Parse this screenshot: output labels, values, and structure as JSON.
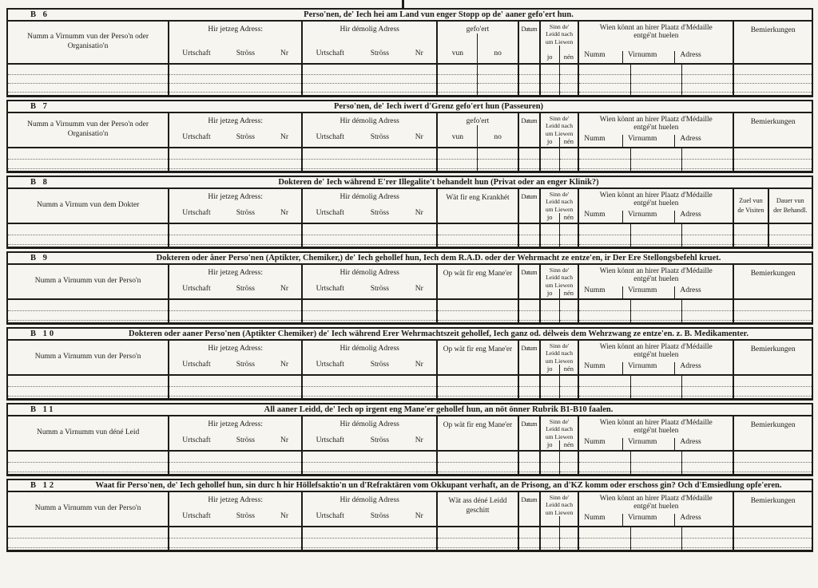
{
  "page": {
    "paper_color": "#f5f4ee",
    "ink_color": "#1d1c18"
  },
  "common": {
    "jetzeg": "Hir jetzeg Adress:",
    "demolig": "Hir démolig Adress",
    "urtschaft": "Urtschaft",
    "stross": "Ströss",
    "nr": "Nr",
    "datum": "Datum",
    "sinn": [
      "Sinn de'",
      "Leidd nach",
      "um Liewen"
    ],
    "jo": "jo",
    "nen": "nén",
    "wien": [
      "Wien könnt an hirer Plaatz d'Médaille",
      "entgé'nt huelen"
    ],
    "numm": "Numm",
    "virnumm": "Virnumm",
    "adress": "Adress",
    "bemierkungen": "Bemierkungen",
    "zuel": [
      "Zuel vun",
      "de Visiten"
    ],
    "dauer": [
      "Dauer vun",
      "der Behandl."
    ]
  },
  "sections": [
    {
      "label": "B 6",
      "title": "Perso'nen, de' Iech hei am Land vun enger Stopp op de' aaner gefo'ert hun.",
      "name_col": "Numm a Virnumm vun der Perso'n oder Organisatio'n",
      "mid": {
        "type": "split",
        "header": "gefo'ert",
        "left": "vun",
        "right": "no"
      },
      "sinn_labels": true,
      "tail": "bem",
      "rows": 3
    },
    {
      "label": "B 7",
      "title": "Perso'nen, de' Iech iwert d'Grenz gefo'ert hun (Passeuren)",
      "name_col": "Numm a Virnumm vun der Perso'n oder Organisatio'n",
      "mid": {
        "type": "split",
        "header": "gefo'ert",
        "left": "vun",
        "right": "no"
      },
      "sinn_labels": true,
      "tail": "bem",
      "rows": 2
    },
    {
      "label": "B 8",
      "title": "Dokteren de' Iech während E'rer Illegalite't behandelt hun (Privat oder an enger Klinik?)",
      "name_col": "Numm a Virnum vun dem Dokter",
      "mid": {
        "type": "single",
        "lines": [
          "Wät fir eng Krankhét"
        ]
      },
      "sinn_labels": true,
      "tail": "visits",
      "rows": 2
    },
    {
      "label": "B 9",
      "title": "Dokteren oder åner Perso'nen (Aptikter, Chemiker,) de' Iech gehollef hun, Iech dem R.A.D. oder der Wehrmacht ze entze'en, ir Der Ere Stellongsbefehl kruet.",
      "name_col": "Numm a Virnumm vun der Perso'n",
      "mid": {
        "type": "single",
        "lines": [
          "Op wät fir eng Mane'er"
        ]
      },
      "sinn_labels": true,
      "tail": "bem",
      "rows": 2
    },
    {
      "label": "B 10",
      "title": "Dokteren oder aaner Perso'nen (Aptikter Chemiker) de' Iech während Erer Wehrmachtszeit gehollef, Iech ganz od. délweis dem Wehrzwang ze entze'en. z. B. Medikamenter.",
      "name_col": "Numm a Virnumm vun der Perso'n",
      "mid": {
        "type": "single",
        "lines": [
          "Op wät fir eng Mane'er"
        ]
      },
      "sinn_labels": true,
      "tail": "bem",
      "rows": 2
    },
    {
      "label": "B 11",
      "title": "All aaner Leidd, de' Iech op irgent eng Mane'er gehollef hun, an nöt önner Rubrik B1-B10 faalen.",
      "name_col": "Numm a Virnumm vun déné Leid",
      "mid": {
        "type": "single",
        "lines": [
          "Op wät fir eng Mane'er"
        ]
      },
      "sinn_labels": true,
      "tail": "bem",
      "rows": 2
    },
    {
      "label": "B 12",
      "title": "Waat fir Perso'nen, de' Iech gehollef hun, sin durc h hir Höllefsaktio'n un d'Refraktären vom Okkupant verhaft, an de Prisong, an d'KZ komm oder erschoss gin? Och d'Emsiedlung opfe'eren.",
      "name_col": "Numm a Virnumm vun der Perso'n",
      "mid": {
        "type": "single",
        "lines": [
          "Wät ass déné Leidd",
          "geschitt"
        ]
      },
      "sinn_labels": false,
      "tail": "bem",
      "rows": 2
    }
  ]
}
